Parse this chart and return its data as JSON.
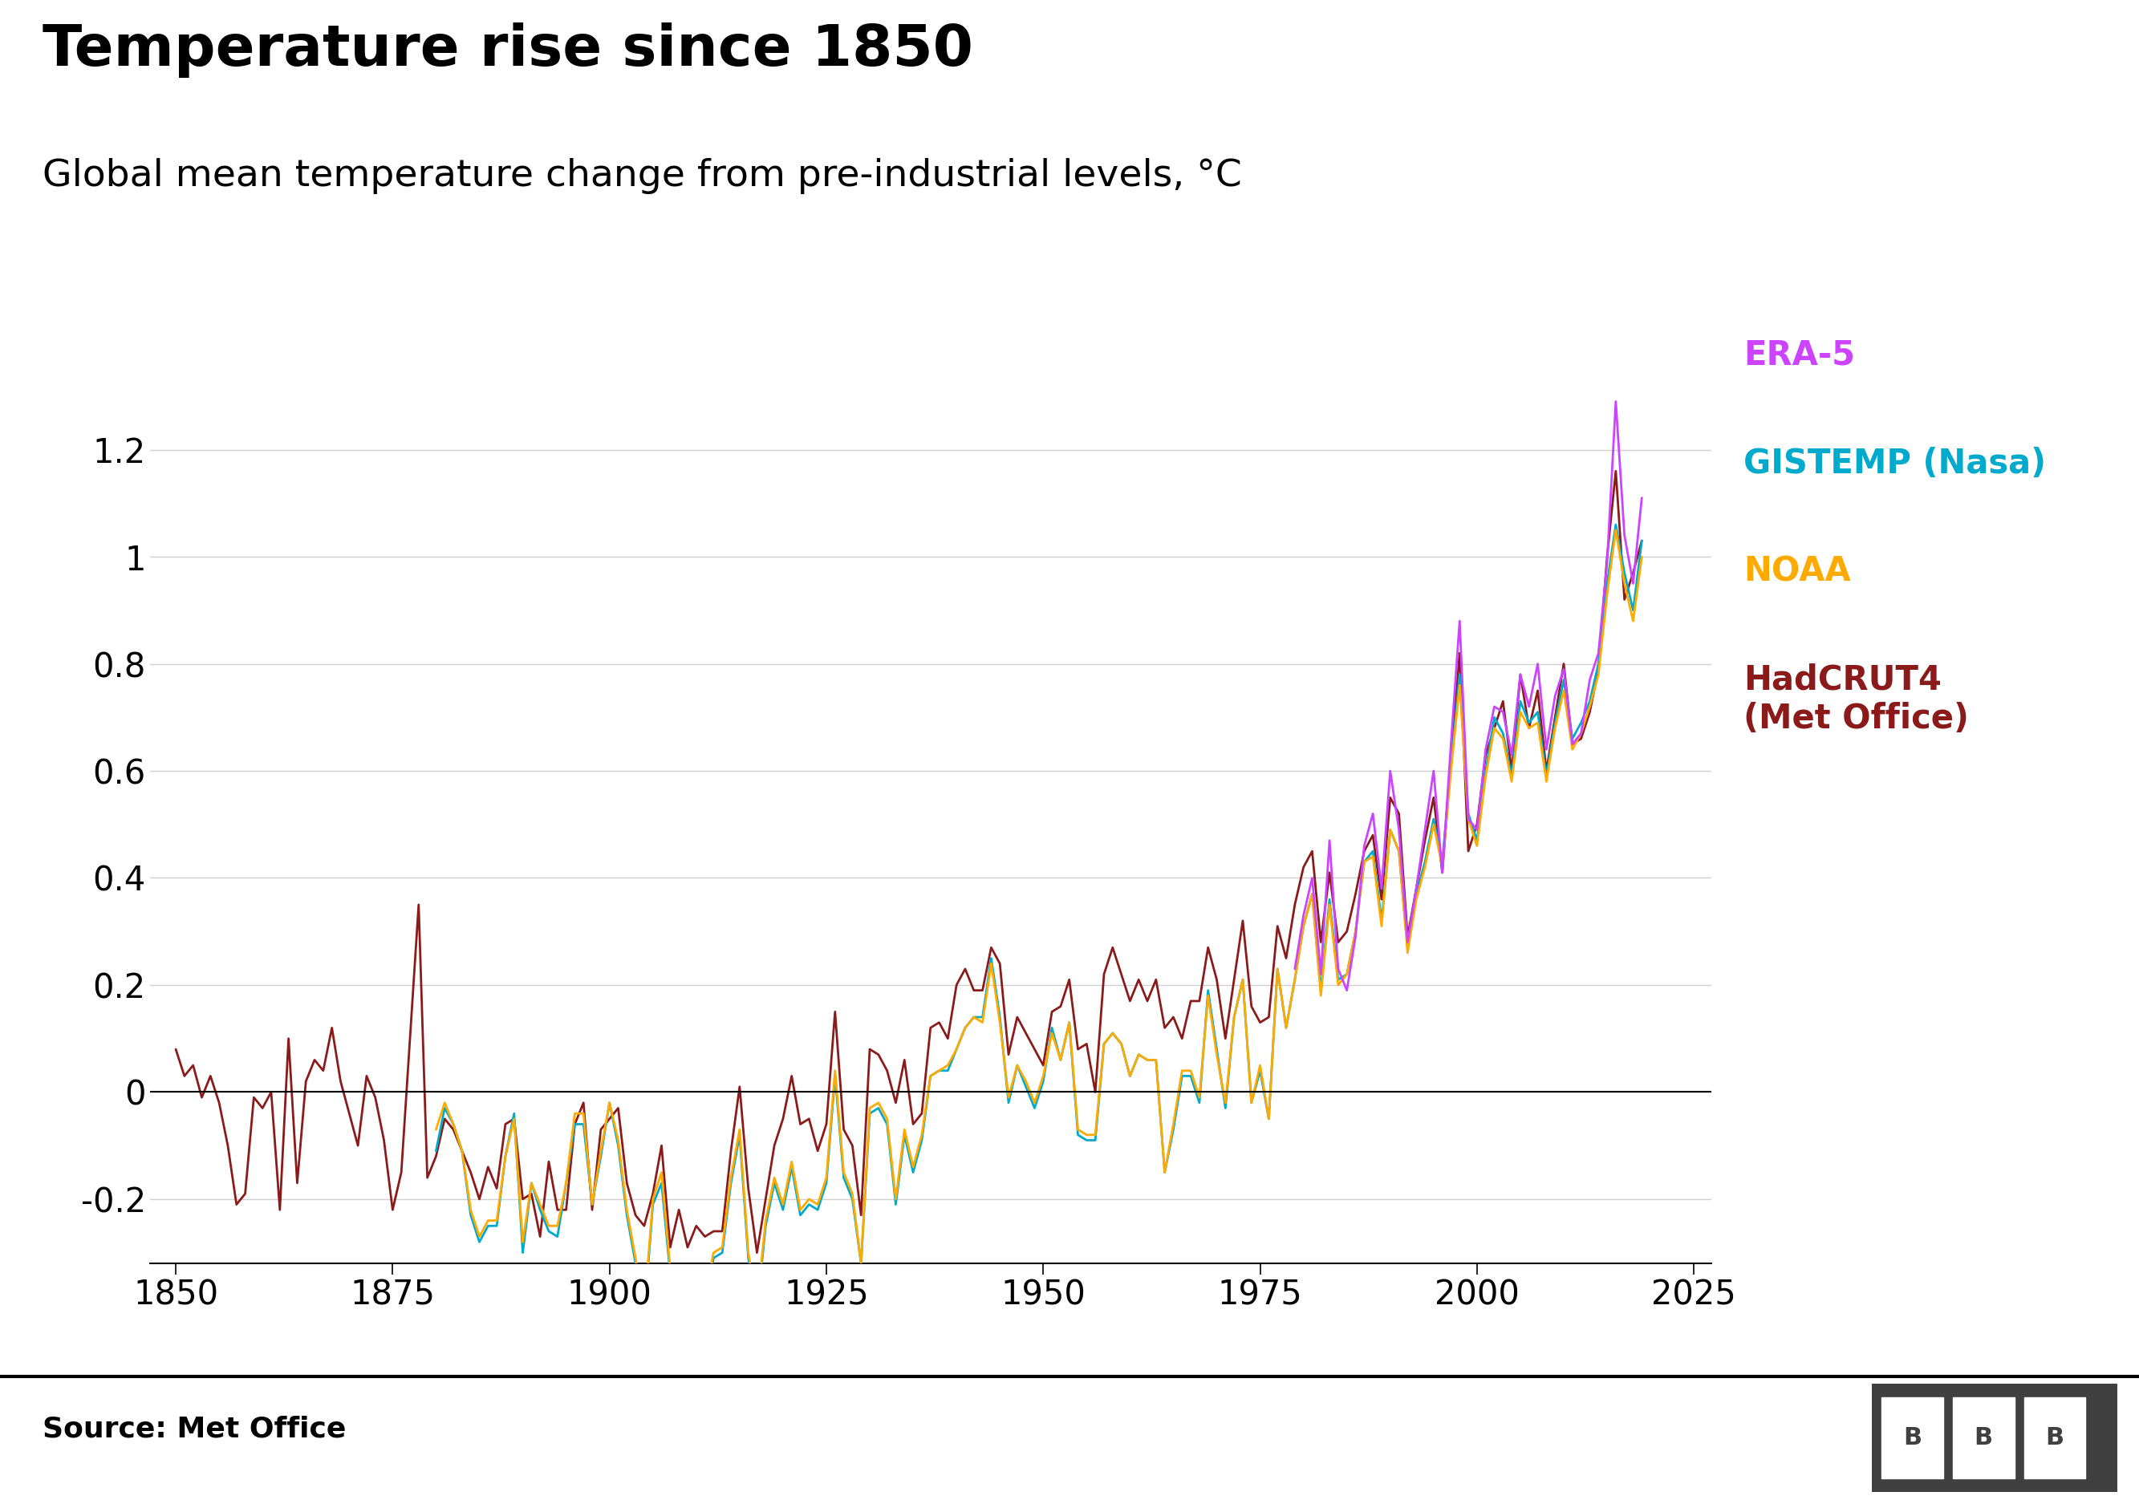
{
  "title": "Temperature rise since 1850",
  "subtitle": "Global mean temperature change from pre-industrial levels, °C",
  "source": "Source: Met Office",
  "background_color": "#ffffff",
  "title_fontsize": 52,
  "subtitle_fontsize": 34,
  "axis_fontsize": 30,
  "legend_fontsize": 30,
  "source_fontsize": 26,
  "ylim": [
    -0.32,
    1.45
  ],
  "xlim": [
    1847,
    2027
  ],
  "yticks": [
    -0.2,
    0,
    0.2,
    0.4,
    0.6,
    0.8,
    1.0,
    1.2
  ],
  "xticks": [
    1850,
    1875,
    1900,
    1925,
    1950,
    1975,
    2000,
    2025
  ],
  "series_colors": {
    "ERA5": "#cc44ff",
    "GISTEMP": "#00aacc",
    "NOAA": "#ffaa00",
    "HadCRUT4": "#8b1a1a"
  },
  "legend_labels": [
    "ERA-5",
    "GISTEMP (Nasa)",
    "NOAA",
    "HadCRUT4\n(Met Office)"
  ],
  "legend_colors": [
    "#cc44ff",
    "#00aacc",
    "#ffaa00",
    "#8b1a1a"
  ],
  "hadcrut4": {
    "years": [
      1850,
      1851,
      1852,
      1853,
      1854,
      1855,
      1856,
      1857,
      1858,
      1859,
      1860,
      1861,
      1862,
      1863,
      1864,
      1865,
      1866,
      1867,
      1868,
      1869,
      1870,
      1871,
      1872,
      1873,
      1874,
      1875,
      1876,
      1877,
      1878,
      1879,
      1880,
      1881,
      1882,
      1883,
      1884,
      1885,
      1886,
      1887,
      1888,
      1889,
      1890,
      1891,
      1892,
      1893,
      1894,
      1895,
      1896,
      1897,
      1898,
      1899,
      1900,
      1901,
      1902,
      1903,
      1904,
      1905,
      1906,
      1907,
      1908,
      1909,
      1910,
      1911,
      1912,
      1913,
      1914,
      1915,
      1916,
      1917,
      1918,
      1919,
      1920,
      1921,
      1922,
      1923,
      1924,
      1925,
      1926,
      1927,
      1928,
      1929,
      1930,
      1931,
      1932,
      1933,
      1934,
      1935,
      1936,
      1937,
      1938,
      1939,
      1940,
      1941,
      1942,
      1943,
      1944,
      1945,
      1946,
      1947,
      1948,
      1949,
      1950,
      1951,
      1952,
      1953,
      1954,
      1955,
      1956,
      1957,
      1958,
      1959,
      1960,
      1961,
      1962,
      1963,
      1964,
      1965,
      1966,
      1967,
      1968,
      1969,
      1970,
      1971,
      1972,
      1973,
      1974,
      1975,
      1976,
      1977,
      1978,
      1979,
      1980,
      1981,
      1982,
      1983,
      1984,
      1985,
      1986,
      1987,
      1988,
      1989,
      1990,
      1991,
      1992,
      1993,
      1994,
      1995,
      1996,
      1997,
      1998,
      1999,
      2000,
      2001,
      2002,
      2003,
      2004,
      2005,
      2006,
      2007,
      2008,
      2009,
      2010,
      2011,
      2012,
      2013,
      2014,
      2015,
      2016,
      2017,
      2018,
      2019
    ],
    "values": [
      0.08,
      0.03,
      0.05,
      -0.01,
      0.03,
      -0.02,
      -0.1,
      -0.21,
      -0.19,
      -0.01,
      -0.03,
      0.0,
      -0.22,
      0.1,
      -0.17,
      0.02,
      0.06,
      0.04,
      0.12,
      0.02,
      -0.04,
      -0.1,
      0.03,
      -0.01,
      -0.09,
      -0.22,
      -0.15,
      0.1,
      0.35,
      -0.16,
      -0.12,
      -0.05,
      -0.07,
      -0.11,
      -0.15,
      -0.2,
      -0.14,
      -0.18,
      -0.06,
      -0.05,
      -0.2,
      -0.19,
      -0.27,
      -0.13,
      -0.22,
      -0.22,
      -0.06,
      -0.02,
      -0.22,
      -0.07,
      -0.05,
      -0.03,
      -0.17,
      -0.23,
      -0.25,
      -0.19,
      -0.1,
      -0.29,
      -0.22,
      -0.29,
      -0.25,
      -0.27,
      -0.26,
      -0.26,
      -0.11,
      0.01,
      -0.18,
      -0.3,
      -0.2,
      -0.1,
      -0.05,
      0.03,
      -0.06,
      -0.05,
      -0.11,
      -0.06,
      0.15,
      -0.07,
      -0.1,
      -0.23,
      0.08,
      0.07,
      0.04,
      -0.02,
      0.06,
      -0.06,
      -0.04,
      0.12,
      0.13,
      0.1,
      0.2,
      0.23,
      0.19,
      0.19,
      0.27,
      0.24,
      0.07,
      0.14,
      0.11,
      0.08,
      0.05,
      0.15,
      0.16,
      0.21,
      0.08,
      0.09,
      0.0,
      0.22,
      0.27,
      0.22,
      0.17,
      0.21,
      0.17,
      0.21,
      0.12,
      0.14,
      0.1,
      0.17,
      0.17,
      0.27,
      0.21,
      0.1,
      0.21,
      0.32,
      0.16,
      0.13,
      0.14,
      0.31,
      0.25,
      0.35,
      0.42,
      0.45,
      0.28,
      0.41,
      0.28,
      0.3,
      0.37,
      0.45,
      0.48,
      0.36,
      0.55,
      0.52,
      0.29,
      0.38,
      0.47,
      0.55,
      0.41,
      0.62,
      0.82,
      0.45,
      0.5,
      0.63,
      0.68,
      0.73,
      0.6,
      0.78,
      0.68,
      0.75,
      0.6,
      0.7,
      0.8,
      0.65,
      0.66,
      0.71,
      0.79,
      1.0,
      1.16,
      0.92,
      0.97,
      1.03
    ]
  },
  "gistemp": {
    "years": [
      1880,
      1881,
      1882,
      1883,
      1884,
      1885,
      1886,
      1887,
      1888,
      1889,
      1890,
      1891,
      1892,
      1893,
      1894,
      1895,
      1896,
      1897,
      1898,
      1899,
      1900,
      1901,
      1902,
      1903,
      1904,
      1905,
      1906,
      1907,
      1908,
      1909,
      1910,
      1911,
      1912,
      1913,
      1914,
      1915,
      1916,
      1917,
      1918,
      1919,
      1920,
      1921,
      1922,
      1923,
      1924,
      1925,
      1926,
      1927,
      1928,
      1929,
      1930,
      1931,
      1932,
      1933,
      1934,
      1935,
      1936,
      1937,
      1938,
      1939,
      1940,
      1941,
      1942,
      1943,
      1944,
      1945,
      1946,
      1947,
      1948,
      1949,
      1950,
      1951,
      1952,
      1953,
      1954,
      1955,
      1956,
      1957,
      1958,
      1959,
      1960,
      1961,
      1962,
      1963,
      1964,
      1965,
      1966,
      1967,
      1968,
      1969,
      1970,
      1971,
      1972,
      1973,
      1974,
      1975,
      1976,
      1977,
      1978,
      1979,
      1980,
      1981,
      1982,
      1983,
      1984,
      1985,
      1986,
      1987,
      1988,
      1989,
      1990,
      1991,
      1992,
      1993,
      1994,
      1995,
      1996,
      1997,
      1998,
      1999,
      2000,
      2001,
      2002,
      2003,
      2004,
      2005,
      2006,
      2007,
      2008,
      2009,
      2010,
      2011,
      2012,
      2013,
      2014,
      2015,
      2016,
      2017,
      2018,
      2019
    ],
    "values": [
      -0.11,
      -0.03,
      -0.06,
      -0.11,
      -0.23,
      -0.28,
      -0.25,
      -0.25,
      -0.12,
      -0.04,
      -0.3,
      -0.17,
      -0.22,
      -0.26,
      -0.27,
      -0.17,
      -0.06,
      -0.06,
      -0.21,
      -0.12,
      -0.02,
      -0.1,
      -0.23,
      -0.32,
      -0.42,
      -0.21,
      -0.17,
      -0.34,
      -0.38,
      -0.43,
      -0.38,
      -0.39,
      -0.31,
      -0.3,
      -0.17,
      -0.08,
      -0.31,
      -0.41,
      -0.25,
      -0.17,
      -0.22,
      -0.14,
      -0.23,
      -0.21,
      -0.22,
      -0.17,
      0.03,
      -0.16,
      -0.2,
      -0.32,
      -0.04,
      -0.03,
      -0.06,
      -0.21,
      -0.08,
      -0.15,
      -0.09,
      0.03,
      0.04,
      0.04,
      0.08,
      0.12,
      0.14,
      0.14,
      0.25,
      0.14,
      -0.02,
      0.05,
      0.01,
      -0.03,
      0.02,
      0.12,
      0.06,
      0.13,
      -0.08,
      -0.09,
      -0.09,
      0.09,
      0.11,
      0.09,
      0.03,
      0.07,
      0.06,
      0.06,
      -0.15,
      -0.07,
      0.03,
      0.03,
      -0.02,
      0.19,
      0.08,
      -0.03,
      0.14,
      0.21,
      -0.02,
      0.04,
      -0.05,
      0.23,
      0.12,
      0.21,
      0.31,
      0.37,
      0.19,
      0.36,
      0.21,
      0.22,
      0.3,
      0.43,
      0.45,
      0.32,
      0.49,
      0.45,
      0.27,
      0.37,
      0.43,
      0.51,
      0.43,
      0.61,
      0.78,
      0.52,
      0.47,
      0.6,
      0.7,
      0.67,
      0.59,
      0.73,
      0.69,
      0.71,
      0.59,
      0.69,
      0.77,
      0.66,
      0.69,
      0.73,
      0.8,
      0.95,
      1.06,
      0.97,
      0.9,
      1.03
    ]
  },
  "noaa": {
    "years": [
      1880,
      1881,
      1882,
      1883,
      1884,
      1885,
      1886,
      1887,
      1888,
      1889,
      1890,
      1891,
      1892,
      1893,
      1894,
      1895,
      1896,
      1897,
      1898,
      1899,
      1900,
      1901,
      1902,
      1903,
      1904,
      1905,
      1906,
      1907,
      1908,
      1909,
      1910,
      1911,
      1912,
      1913,
      1914,
      1915,
      1916,
      1917,
      1918,
      1919,
      1920,
      1921,
      1922,
      1923,
      1924,
      1925,
      1926,
      1927,
      1928,
      1929,
      1930,
      1931,
      1932,
      1933,
      1934,
      1935,
      1936,
      1937,
      1938,
      1939,
      1940,
      1941,
      1942,
      1943,
      1944,
      1945,
      1946,
      1947,
      1948,
      1949,
      1950,
      1951,
      1952,
      1953,
      1954,
      1955,
      1956,
      1957,
      1958,
      1959,
      1960,
      1961,
      1962,
      1963,
      1964,
      1965,
      1966,
      1967,
      1968,
      1969,
      1970,
      1971,
      1972,
      1973,
      1974,
      1975,
      1976,
      1977,
      1978,
      1979,
      1980,
      1981,
      1982,
      1983,
      1984,
      1985,
      1986,
      1987,
      1988,
      1989,
      1990,
      1991,
      1992,
      1993,
      1994,
      1995,
      1996,
      1997,
      1998,
      1999,
      2000,
      2001,
      2002,
      2003,
      2004,
      2005,
      2006,
      2007,
      2008,
      2009,
      2010,
      2011,
      2012,
      2013,
      2014,
      2015,
      2016,
      2017,
      2018,
      2019
    ],
    "values": [
      -0.07,
      -0.02,
      -0.06,
      -0.11,
      -0.22,
      -0.27,
      -0.24,
      -0.24,
      -0.12,
      -0.05,
      -0.28,
      -0.17,
      -0.21,
      -0.25,
      -0.25,
      -0.17,
      -0.04,
      -0.04,
      -0.21,
      -0.11,
      -0.02,
      -0.09,
      -0.22,
      -0.31,
      -0.41,
      -0.2,
      -0.15,
      -0.33,
      -0.36,
      -0.42,
      -0.37,
      -0.38,
      -0.3,
      -0.29,
      -0.16,
      -0.07,
      -0.3,
      -0.4,
      -0.24,
      -0.16,
      -0.21,
      -0.13,
      -0.22,
      -0.2,
      -0.21,
      -0.16,
      0.04,
      -0.15,
      -0.19,
      -0.32,
      -0.03,
      -0.02,
      -0.05,
      -0.2,
      -0.07,
      -0.14,
      -0.08,
      0.03,
      0.04,
      0.05,
      0.08,
      0.12,
      0.14,
      0.13,
      0.24,
      0.13,
      -0.01,
      0.05,
      0.02,
      -0.02,
      0.03,
      0.11,
      0.06,
      0.13,
      -0.07,
      -0.08,
      -0.08,
      0.09,
      0.11,
      0.09,
      0.03,
      0.07,
      0.06,
      0.06,
      -0.15,
      -0.06,
      0.04,
      0.04,
      -0.01,
      0.18,
      0.07,
      -0.02,
      0.14,
      0.21,
      -0.02,
      0.05,
      -0.05,
      0.23,
      0.12,
      0.21,
      0.31,
      0.37,
      0.18,
      0.35,
      0.2,
      0.22,
      0.3,
      0.43,
      0.44,
      0.31,
      0.49,
      0.45,
      0.26,
      0.36,
      0.42,
      0.5,
      0.42,
      0.6,
      0.76,
      0.51,
      0.46,
      0.59,
      0.68,
      0.66,
      0.58,
      0.71,
      0.68,
      0.69,
      0.58,
      0.68,
      0.75,
      0.64,
      0.67,
      0.72,
      0.78,
      0.93,
      1.05,
      0.95,
      0.88,
      1.0
    ]
  },
  "era5": {
    "years": [
      1979,
      1980,
      1981,
      1982,
      1983,
      1984,
      1985,
      1986,
      1987,
      1988,
      1989,
      1990,
      1991,
      1992,
      1993,
      1994,
      1995,
      1996,
      1997,
      1998,
      1999,
      2000,
      2001,
      2002,
      2003,
      2004,
      2005,
      2006,
      2007,
      2008,
      2009,
      2010,
      2011,
      2012,
      2013,
      2014,
      2015,
      2016,
      2017,
      2018,
      2019
    ],
    "values": [
      0.23,
      0.33,
      0.4,
      0.22,
      0.47,
      0.23,
      0.19,
      0.29,
      0.46,
      0.52,
      0.38,
      0.6,
      0.49,
      0.28,
      0.38,
      0.49,
      0.6,
      0.41,
      0.65,
      0.88,
      0.51,
      0.49,
      0.64,
      0.72,
      0.71,
      0.63,
      0.78,
      0.72,
      0.8,
      0.64,
      0.74,
      0.79,
      0.65,
      0.67,
      0.77,
      0.82,
      0.99,
      1.29,
      1.04,
      0.95,
      1.11
    ]
  }
}
